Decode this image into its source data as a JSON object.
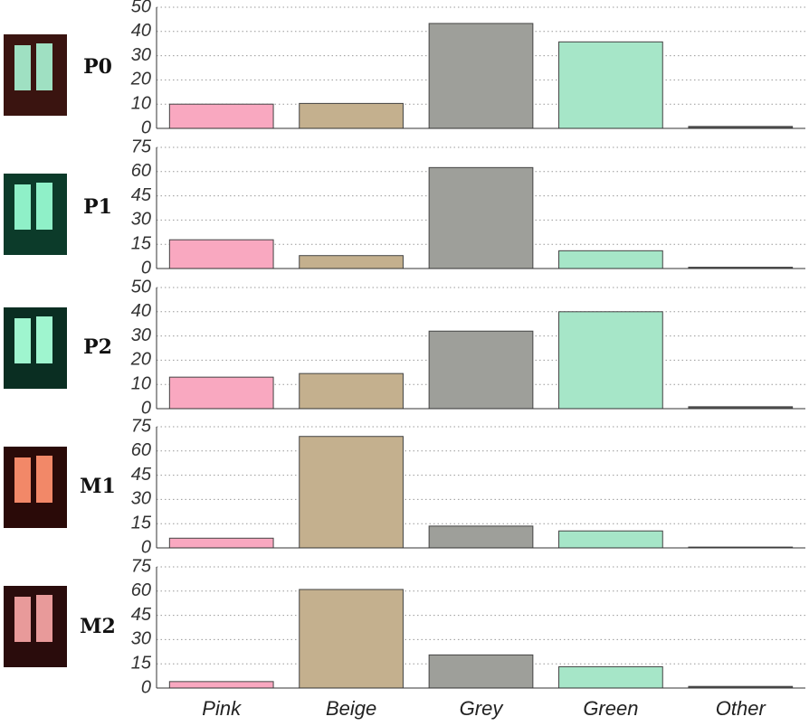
{
  "chart_data": [
    {
      "type": "bar",
      "title": "P0",
      "values": [
        10,
        10.3,
        43.3,
        35.7,
        0.8
      ],
      "colors": [
        "#f9a8c0",
        "#c4b08e",
        "#9e9f9a",
        "#a6e6c8",
        "#555555"
      ],
      "ylim": [
        0,
        50
      ],
      "yticks": [
        0,
        10,
        20,
        30,
        40,
        50
      ],
      "grid": true
    },
    {
      "type": "bar",
      "title": "P1",
      "values": [
        17.8,
        8,
        62.5,
        11,
        0.8
      ],
      "colors": [
        "#f9a8c0",
        "#c4b08e",
        "#9e9f9a",
        "#a6e6c8",
        "#555555"
      ],
      "ylim": [
        0,
        75
      ],
      "yticks": [
        0,
        15,
        30,
        45,
        60,
        75
      ],
      "grid": true
    },
    {
      "type": "bar",
      "title": "P2",
      "values": [
        13,
        14.5,
        32,
        40,
        0.8
      ],
      "colors": [
        "#f9a8c0",
        "#c4b08e",
        "#9e9f9a",
        "#a6e6c8",
        "#555555"
      ],
      "ylim": [
        0,
        50
      ],
      "yticks": [
        0,
        10,
        20,
        30,
        40,
        50
      ],
      "grid": true
    },
    {
      "type": "bar",
      "title": "M1",
      "values": [
        6,
        69,
        13.5,
        10.5,
        0.5
      ],
      "colors": [
        "#f9a8c0",
        "#c4b08e",
        "#9e9f9a",
        "#a6e6c8",
        "#555555"
      ],
      "ylim": [
        0,
        75
      ],
      "yticks": [
        0,
        15,
        30,
        45,
        60,
        75
      ],
      "grid": true
    },
    {
      "type": "bar",
      "title": "M2",
      "categories": [
        "Pink",
        "Beige",
        "Grey",
        "Green",
        "Other"
      ],
      "values": [
        4,
        61,
        20.5,
        13.2,
        1
      ],
      "colors": [
        "#f9a8c0",
        "#c4b08e",
        "#9e9f9a",
        "#a6e6c8",
        "#555555"
      ],
      "ylim": [
        0,
        75
      ],
      "yticks": [
        0,
        15,
        30,
        45,
        60,
        75
      ],
      "grid": true
    }
  ]
}
